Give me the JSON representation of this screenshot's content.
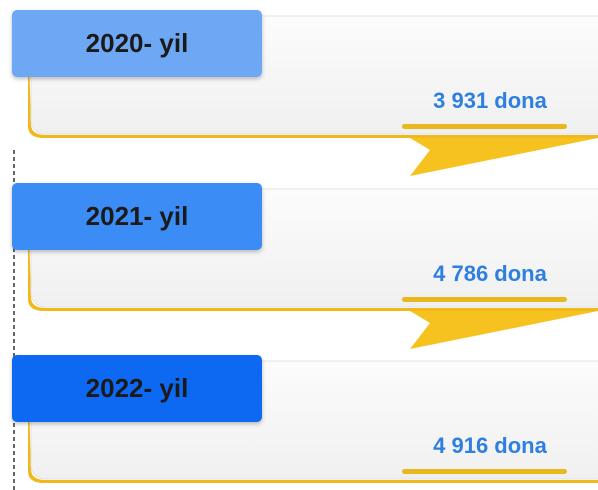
{
  "items": [
    {
      "year": "2020- yil",
      "value": "3 931 dona"
    },
    {
      "year": "2021- yil",
      "value": "4 786 dona"
    },
    {
      "year": "2022- yil",
      "value": "4 916 dona"
    }
  ]
}
